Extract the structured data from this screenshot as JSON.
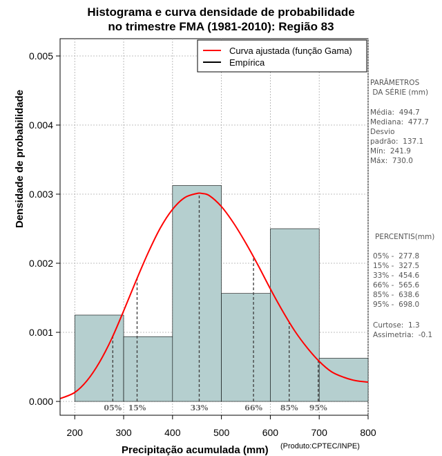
{
  "chart_data": {
    "type": "bar",
    "title": "Histograma e curva densidade de probabilidade",
    "subtitle": "no trimestre FMA (1981-2010): Região 83",
    "xlabel": "Precipitação acumulada (mm)",
    "ylabel": "Densidade de probabilidade",
    "credit": "(Produto:CPTEC/INPE)",
    "xlim": [
      170,
      800
    ],
    "ylim": [
      0,
      0.0052
    ],
    "x_ticks": [
      200,
      300,
      400,
      500,
      600,
      700,
      800
    ],
    "y_ticks": [
      0.0,
      0.001,
      0.002,
      0.003,
      0.004,
      0.005
    ],
    "y_tick_labels": [
      "0.000",
      "0.001",
      "0.002",
      "0.003",
      "0.004",
      "0.005"
    ],
    "grid": true,
    "bins": [
      {
        "from": 200,
        "to": 300,
        "density": 0.00125
      },
      {
        "from": 300,
        "to": 400,
        "density": 0.000938
      },
      {
        "from": 400,
        "to": 500,
        "density": 0.003125
      },
      {
        "from": 500,
        "to": 600,
        "density": 0.001563
      },
      {
        "from": 600,
        "to": 700,
        "density": 0.0025
      },
      {
        "from": 700,
        "to": 800,
        "density": 0.000625
      }
    ],
    "curve": {
      "name": "Curva ajustada (função Gama)",
      "x": [
        170,
        200,
        225,
        250,
        275,
        300,
        325,
        350,
        375,
        400,
        425,
        450,
        460,
        475,
        500,
        525,
        550,
        575,
        600,
        625,
        650,
        675,
        700,
        725,
        750,
        775,
        800
      ],
      "y": [
        4e-05,
        0.00013,
        0.0003,
        0.00056,
        0.0009,
        0.00131,
        0.00174,
        0.00215,
        0.00251,
        0.00278,
        0.00295,
        0.00301,
        0.00301,
        0.00298,
        0.00282,
        0.00258,
        0.00229,
        0.00197,
        0.00163,
        0.00131,
        0.00102,
        0.00078,
        0.00058,
        0.00043,
        0.00035,
        0.0003,
        0.00028
      ]
    },
    "legend": {
      "position": "top-right",
      "entries": [
        {
          "label": "Curva ajustada (função Gama)",
          "color": "#ff0000"
        },
        {
          "label": "Empírica",
          "color": "#000000"
        }
      ]
    },
    "percentile_markers": [
      {
        "label": "05%",
        "x": 277.8
      },
      {
        "label": "15%",
        "x": 327.5
      },
      {
        "label": "33%",
        "x": 454.6
      },
      {
        "label": "66%",
        "x": 565.6
      },
      {
        "label": "85%",
        "x": 638.6
      },
      {
        "label": "95%",
        "x": 698.0
      }
    ],
    "colors": {
      "bar_fill": "#b5cfcf",
      "curve": "#ff0000",
      "grid": "#aaaaaa"
    }
  },
  "side_panel": {
    "params_heading": "PARÂMETROS\n DA SÉRIE (mm)",
    "params_values": "Média:  494.7\nMediana:  477.7\nDesvio\npadrão:  137.1\nMín:  241.9\nMáx:  730.0",
    "percentiles_heading": "PERCENTIS(mm)",
    "percentiles_values": "05% -  277.8\n15% -  327.5\n33% -  454.6\n66% -  565.6\n85% -  638.6\n95% -  698.0",
    "stats_values": "Curtose:  1.3\nAssimetria:  -0.1"
  }
}
